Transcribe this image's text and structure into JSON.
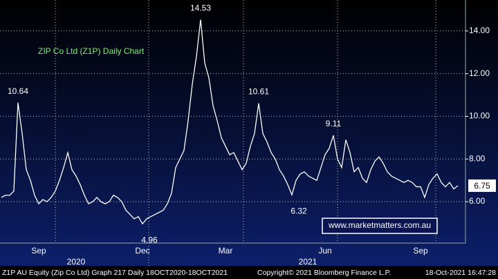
{
  "chart_data": {
    "type": "line",
    "title": "ZIP Co Ltd (Z1P) Daily Chart",
    "watermark": "www.marketmatters.com.au",
    "footer": {
      "security": "Z1P AU Equity (Zip Co Ltd) Graph 217  Daily 18OCT2020-18OCT2021",
      "copyright": "Copyright© 2021 Bloomberg Finance L.P.",
      "timestamp": "18-Oct-2021 16:47:28"
    },
    "years": [
      "2020",
      "2021"
    ],
    "categories": [
      null,
      null,
      null,
      null,
      null,
      null,
      null,
      null,
      null,
      "Sep",
      null,
      null,
      null,
      null,
      null,
      null,
      null,
      null,
      null,
      null,
      null,
      null,
      null,
      null,
      null,
      null,
      null,
      null,
      null,
      null,
      null,
      null,
      null,
      null,
      "Dec",
      null,
      null,
      null,
      null,
      null,
      null,
      null,
      null,
      null,
      null,
      null,
      null,
      null,
      null,
      null,
      null,
      null,
      null,
      null,
      "Mar",
      null,
      null,
      null,
      null,
      null,
      null,
      null,
      null,
      null,
      null,
      null,
      null,
      null,
      null,
      null,
      null,
      null,
      null,
      null,
      null,
      null,
      null,
      null,
      "Jun",
      null,
      null,
      null,
      null,
      null,
      null,
      null,
      null,
      null,
      null,
      null,
      null,
      null,
      null,
      null,
      null,
      null,
      null,
      null,
      null,
      null,
      null,
      "Sep",
      null,
      null,
      null,
      null,
      null,
      null,
      null,
      null,
      null
    ],
    "values": [
      6.2,
      6.3,
      6.3,
      6.5,
      10.64,
      9.2,
      7.5,
      7.0,
      6.3,
      5.9,
      6.1,
      6.0,
      6.2,
      6.5,
      7.0,
      7.6,
      8.3,
      7.5,
      7.2,
      6.8,
      6.3,
      5.9,
      6.0,
      6.2,
      6.0,
      5.9,
      6.0,
      6.3,
      6.2,
      6.0,
      5.6,
      5.4,
      5.2,
      5.3,
      4.96,
      5.2,
      5.3,
      5.4,
      5.5,
      5.6,
      5.9,
      6.4,
      7.6,
      8.0,
      8.4,
      9.8,
      11.5,
      12.8,
      14.53,
      12.5,
      11.8,
      10.5,
      9.8,
      9.0,
      8.6,
      8.2,
      8.3,
      7.9,
      7.5,
      7.8,
      8.6,
      9.2,
      10.61,
      9.2,
      8.8,
      8.3,
      8.0,
      7.5,
      7.2,
      6.8,
      6.32,
      7.0,
      7.3,
      7.4,
      7.2,
      7.1,
      7.0,
      7.6,
      8.2,
      8.5,
      9.11,
      8.0,
      7.6,
      8.9,
      8.3,
      7.4,
      7.6,
      7.1,
      6.9,
      7.5,
      7.9,
      8.1,
      7.8,
      7.4,
      7.2,
      7.1,
      7.0,
      6.9,
      7.0,
      6.9,
      6.7,
      6.7,
      6.2,
      6.8,
      7.1,
      7.3,
      6.9,
      6.7,
      6.9,
      6.6,
      6.75
    ],
    "annotations": [
      10.64,
      14.53,
      4.96,
      10.61,
      6.32,
      9.11
    ],
    "color": "#ffffff",
    "title_color": "#7cf07c",
    "ylim": [
      4.06,
      15.45
    ],
    "yticks": [
      {
        "value": 6,
        "label": "6.00"
      },
      {
        "value": 8,
        "label": "8.00"
      },
      {
        "value": 10,
        "label": "10.00"
      },
      {
        "value": 12,
        "label": "12.00"
      },
      {
        "value": 14,
        "label": "14.00"
      }
    ],
    "grid": true
  }
}
